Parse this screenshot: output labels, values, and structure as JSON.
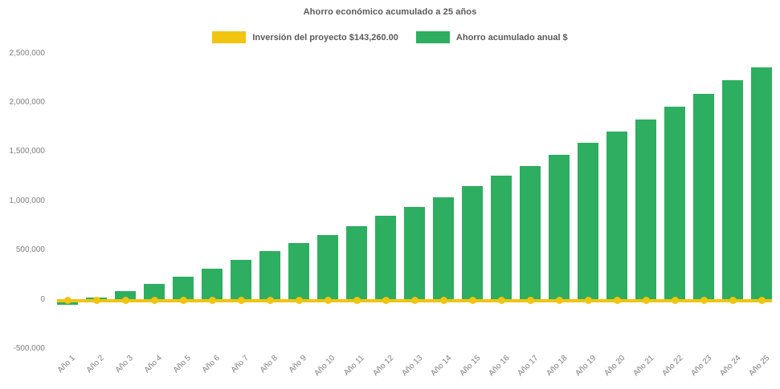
{
  "title": "Ahorro económico acumulado a 25 años",
  "chart_data": {
    "type": "bar",
    "title": "Ahorro económico acumulado a 25 años",
    "categories": [
      "Año 1",
      "Año 2",
      "Año 3",
      "Año 4",
      "Año 5",
      "Año 6",
      "Año 7",
      "Año 8",
      "Año 9",
      "Año 10",
      "Año 11",
      "Año 12",
      "Año 13",
      "Año 14",
      "Año 15",
      "Año 16",
      "Año 17",
      "Año 18",
      "Año 19",
      "Año 20",
      "Año 21",
      "Año 22",
      "Año 23",
      "Año 24",
      "Año 25"
    ],
    "series": [
      {
        "name": "Inversión del proyecto $143,260.00",
        "type": "line",
        "color": "#F1C40F",
        "values": [
          0,
          0,
          0,
          0,
          0,
          0,
          0,
          0,
          0,
          0,
          0,
          0,
          0,
          0,
          0,
          0,
          0,
          0,
          0,
          0,
          0,
          0,
          0,
          0,
          0
        ]
      },
      {
        "name": "Ahorro acumulado anual $",
        "type": "bar",
        "color": "#2EAE60",
        "values": [
          -55000,
          25000,
          85000,
          160000,
          235000,
          315000,
          400000,
          490000,
          575000,
          655000,
          745000,
          850000,
          940000,
          1040000,
          1155000,
          1255000,
          1360000,
          1470000,
          1590000,
          1705000,
          1830000,
          1960000,
          2085000,
          2230000,
          2360000
        ]
      }
    ],
    "ylim": [
      -500000,
      2500000
    ],
    "yticks": [
      2500000,
      2000000,
      1500000,
      1000000,
      500000,
      0,
      -500000
    ],
    "grid": false,
    "legend_position": "top",
    "x_tick_rotation": 45,
    "xlabel": "",
    "ylabel": ""
  }
}
